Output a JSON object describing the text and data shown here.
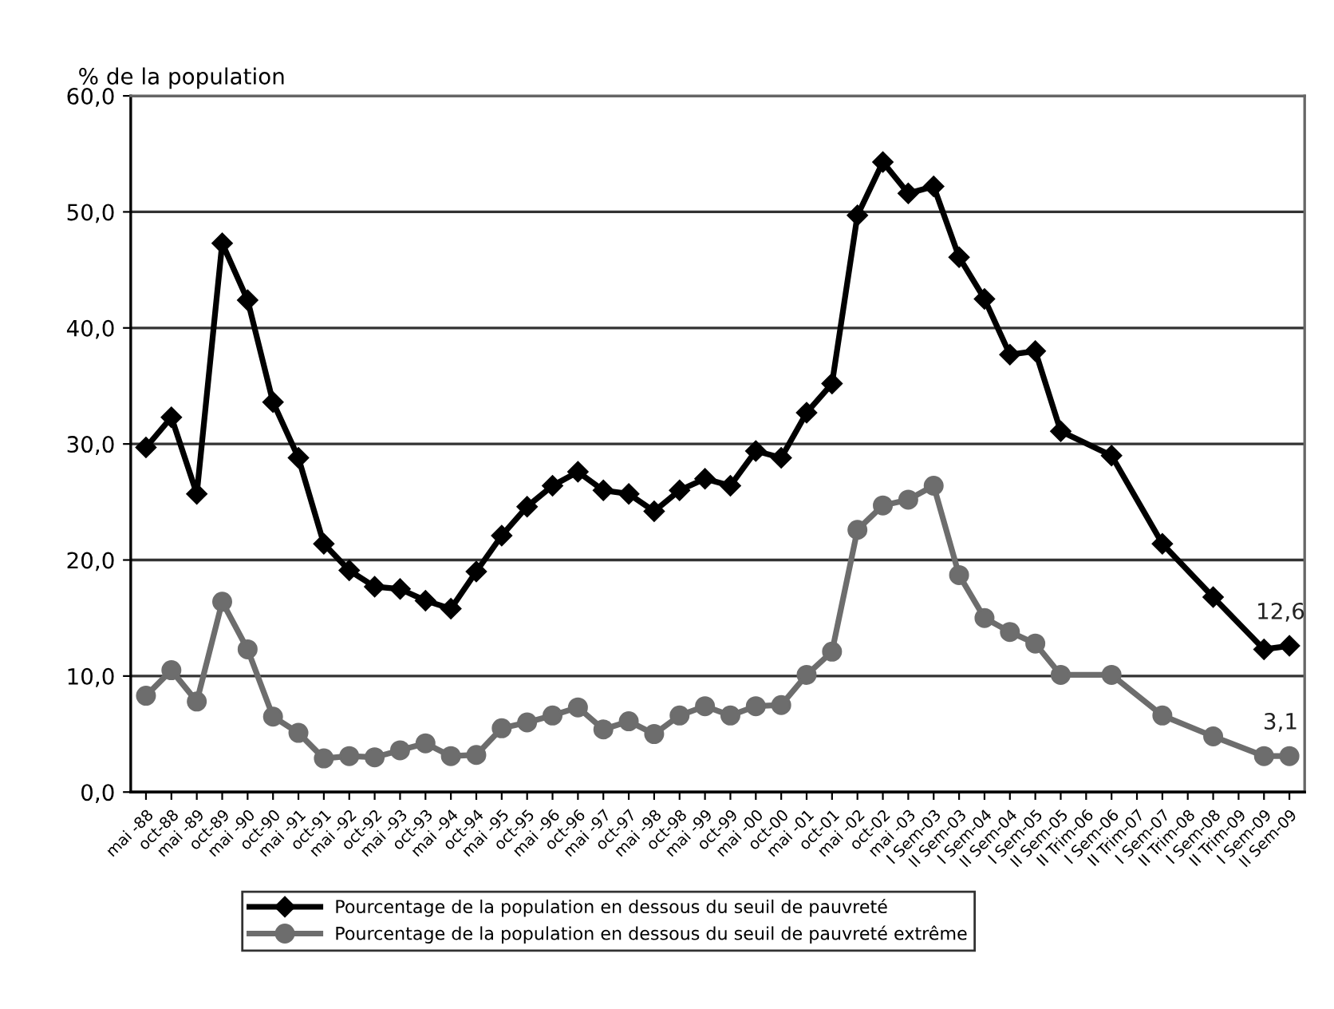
{
  "chart_data": {
    "type": "line",
    "ylabel": "% de la population",
    "categories": [
      "mai -88",
      "oct-88",
      "mai -89",
      "oct-89",
      "mai -90",
      "oct-90",
      "mai -91",
      "oct-91",
      "mai -92",
      "oct-92",
      "mai -93",
      "oct-93",
      "mai -94",
      "oct-94",
      "mai -95",
      "oct-95",
      "mai -96",
      "oct-96",
      "mai -97",
      "oct-97",
      "mai -98",
      "oct-98",
      "mai -99",
      "oct-99",
      "mai -00",
      "oct-00",
      "mai -01",
      "oct-01",
      "mai -02",
      "oct-02",
      "mai -03",
      "I Sem-03",
      "II Sem-03",
      "I Sem-04",
      "II Sem-04",
      "I Sem-05",
      "II Sem-05",
      "II Trim-06",
      "I Sem-06",
      "II Trim-07",
      "I Sem-07",
      "II Trim-08",
      "I Sem-08",
      "II Trim-09",
      "I Sem-09",
      "II Sem-09"
    ],
    "series": [
      {
        "name": "Pourcentage de la population en dessous du seuil de pauvreté",
        "color": "#000000",
        "marker": "diamond",
        "values": [
          29.7,
          32.3,
          25.7,
          47.3,
          42.4,
          33.6,
          28.8,
          21.4,
          19.1,
          17.7,
          17.5,
          16.5,
          15.8,
          19.0,
          22.1,
          24.6,
          26.4,
          27.6,
          26.0,
          25.7,
          24.2,
          26.0,
          27.0,
          26.4,
          29.4,
          28.8,
          32.7,
          35.2,
          49.7,
          54.3,
          51.6,
          52.2,
          46.1,
          42.5,
          37.7,
          38.0,
          31.1,
          null,
          29.0,
          null,
          21.4,
          null,
          16.8,
          null,
          12.3,
          12.6
        ],
        "value_labels": [
          null,
          null,
          null,
          null,
          null,
          null,
          null,
          null,
          null,
          null,
          null,
          null,
          null,
          null,
          null,
          null,
          null,
          null,
          null,
          null,
          null,
          null,
          null,
          null,
          null,
          null,
          null,
          null,
          null,
          null,
          null,
          null,
          null,
          null,
          null,
          null,
          null,
          null,
          null,
          null,
          null,
          null,
          null,
          null,
          null,
          "12,6"
        ]
      },
      {
        "name": "Pourcentage de la population en dessous du seuil de pauvreté extrême",
        "color": "#6d6d6d",
        "marker": "circle",
        "values": [
          8.3,
          10.5,
          7.8,
          16.4,
          12.3,
          6.5,
          5.1,
          2.9,
          3.1,
          3.0,
          3.6,
          4.2,
          3.1,
          3.2,
          5.5,
          6.0,
          6.6,
          7.3,
          5.4,
          6.1,
          5.0,
          6.6,
          7.4,
          6.6,
          7.4,
          7.5,
          10.1,
          12.1,
          22.6,
          24.7,
          25.2,
          26.4,
          18.7,
          15.0,
          13.8,
          12.8,
          10.1,
          null,
          10.1,
          null,
          6.6,
          null,
          4.8,
          null,
          3.1,
          3.1
        ],
        "value_labels": [
          null,
          null,
          null,
          null,
          null,
          null,
          null,
          null,
          null,
          null,
          null,
          null,
          null,
          null,
          null,
          null,
          null,
          null,
          null,
          null,
          null,
          null,
          null,
          null,
          null,
          null,
          null,
          null,
          null,
          null,
          null,
          null,
          null,
          null,
          null,
          null,
          null,
          null,
          null,
          null,
          null,
          null,
          null,
          null,
          null,
          "3,1"
        ]
      }
    ],
    "ylim": [
      0,
      60
    ],
    "yticks": [
      {
        "value": 0,
        "label": "0,0"
      },
      {
        "value": 10,
        "label": "10,0"
      },
      {
        "value": 20,
        "label": "20,0"
      },
      {
        "value": 30,
        "label": "30,0"
      },
      {
        "value": 40,
        "label": "40,0"
      },
      {
        "value": 50,
        "label": "50,0"
      },
      {
        "value": 60,
        "label": "60,0"
      }
    ],
    "grid": "y",
    "legend": "bottom left",
    "line_style": "solid"
  }
}
